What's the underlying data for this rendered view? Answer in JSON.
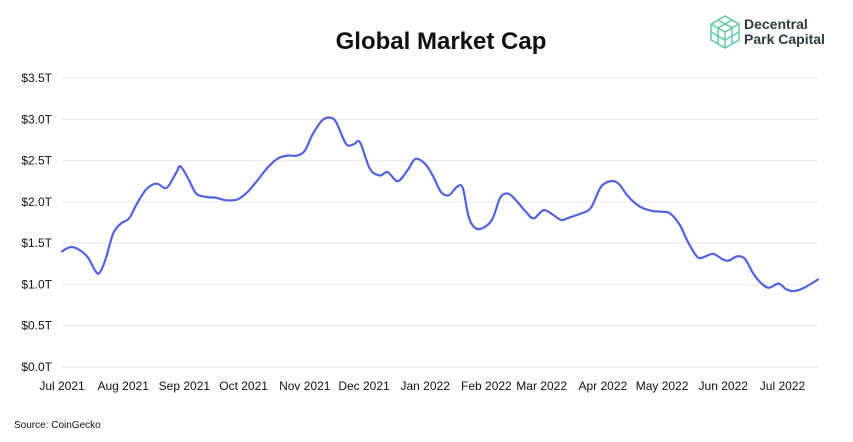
{
  "chart_data": {
    "type": "line",
    "title": "Global Market Cap",
    "xlabel": "",
    "ylabel": "",
    "ylim": [
      0,
      3.5
    ],
    "y_ticks": [
      {
        "value": 0.0,
        "label": "$0.0T"
      },
      {
        "value": 0.5,
        "label": "$0.5T"
      },
      {
        "value": 1.0,
        "label": "$1.0T"
      },
      {
        "value": 1.5,
        "label": "$1.5T"
      },
      {
        "value": 2.0,
        "label": "$2.0T"
      },
      {
        "value": 2.5,
        "label": "$2.5T"
      },
      {
        "value": 3.0,
        "label": "$3.0T"
      },
      {
        "value": 3.5,
        "label": "$3.5T"
      }
    ],
    "x_ticks": [
      {
        "date": "2021-07-01",
        "label": "Jul 2021"
      },
      {
        "date": "2021-08-01",
        "label": "Aug 2021"
      },
      {
        "date": "2021-09-01",
        "label": "Sep 2021"
      },
      {
        "date": "2021-10-01",
        "label": "Oct 2021"
      },
      {
        "date": "2021-11-01",
        "label": "Nov 2021"
      },
      {
        "date": "2021-12-01",
        "label": "Dec 2021"
      },
      {
        "date": "2022-01-01",
        "label": "Jan 2022"
      },
      {
        "date": "2022-02-01",
        "label": "Feb 2022"
      },
      {
        "date": "2022-03-01",
        "label": "Mar 2022"
      },
      {
        "date": "2022-04-01",
        "label": "Apr 2022"
      },
      {
        "date": "2022-05-01",
        "label": "May 2022"
      },
      {
        "date": "2022-06-01",
        "label": "Jun 2022"
      },
      {
        "date": "2022-07-01",
        "label": "Jul 2022"
      }
    ],
    "grid": true,
    "legend": "none",
    "series": [
      {
        "color": "#4f63de",
        "points": [
          [
            "2021-07-01",
            1.4
          ],
          [
            "2021-07-05",
            1.45
          ],
          [
            "2021-07-09",
            1.43
          ],
          [
            "2021-07-14",
            1.33
          ],
          [
            "2021-07-18",
            1.16
          ],
          [
            "2021-07-20",
            1.14
          ],
          [
            "2021-07-23",
            1.3
          ],
          [
            "2021-07-27",
            1.62
          ],
          [
            "2021-07-31",
            1.74
          ],
          [
            "2021-08-04",
            1.8
          ],
          [
            "2021-08-08",
            1.98
          ],
          [
            "2021-08-13",
            2.16
          ],
          [
            "2021-08-18",
            2.22
          ],
          [
            "2021-08-23",
            2.17
          ],
          [
            "2021-08-28",
            2.36
          ],
          [
            "2021-08-30",
            2.43
          ],
          [
            "2021-09-03",
            2.28
          ],
          [
            "2021-09-07",
            2.1
          ],
          [
            "2021-09-12",
            2.06
          ],
          [
            "2021-09-17",
            2.05
          ],
          [
            "2021-09-22",
            2.02
          ],
          [
            "2021-09-28",
            2.03
          ],
          [
            "2021-10-03",
            2.12
          ],
          [
            "2021-10-08",
            2.26
          ],
          [
            "2021-10-13",
            2.41
          ],
          [
            "2021-10-18",
            2.52
          ],
          [
            "2021-10-23",
            2.56
          ],
          [
            "2021-10-28",
            2.56
          ],
          [
            "2021-11-01",
            2.62
          ],
          [
            "2021-11-05",
            2.82
          ],
          [
            "2021-11-10",
            2.99
          ],
          [
            "2021-11-14",
            3.02
          ],
          [
            "2021-11-17",
            2.96
          ],
          [
            "2021-11-22",
            2.7
          ],
          [
            "2021-11-26",
            2.7
          ],
          [
            "2021-11-29",
            2.72
          ],
          [
            "2021-12-04",
            2.4
          ],
          [
            "2021-12-09",
            2.32
          ],
          [
            "2021-12-13",
            2.36
          ],
          [
            "2021-12-18",
            2.25
          ],
          [
            "2021-12-23",
            2.38
          ],
          [
            "2021-12-27",
            2.52
          ],
          [
            "2022-01-01",
            2.46
          ],
          [
            "2022-01-05",
            2.31
          ],
          [
            "2022-01-09",
            2.12
          ],
          [
            "2022-01-13",
            2.08
          ],
          [
            "2022-01-17",
            2.18
          ],
          [
            "2022-01-20",
            2.17
          ],
          [
            "2022-01-23",
            1.82
          ],
          [
            "2022-01-26",
            1.69
          ],
          [
            "2022-01-30",
            1.68
          ],
          [
            "2022-02-04",
            1.79
          ],
          [
            "2022-02-08",
            2.05
          ],
          [
            "2022-02-12",
            2.1
          ],
          [
            "2022-02-16",
            2.02
          ],
          [
            "2022-02-21",
            1.88
          ],
          [
            "2022-02-25",
            1.8
          ],
          [
            "2022-03-02",
            1.9
          ],
          [
            "2022-03-07",
            1.84
          ],
          [
            "2022-03-11",
            1.78
          ],
          [
            "2022-03-15",
            1.81
          ],
          [
            "2022-03-21",
            1.86
          ],
          [
            "2022-03-26",
            1.93
          ],
          [
            "2022-03-31",
            2.18
          ],
          [
            "2022-04-05",
            2.25
          ],
          [
            "2022-04-09",
            2.22
          ],
          [
            "2022-04-14",
            2.06
          ],
          [
            "2022-04-20",
            1.94
          ],
          [
            "2022-04-26",
            1.89
          ],
          [
            "2022-05-01",
            1.88
          ],
          [
            "2022-05-05",
            1.86
          ],
          [
            "2022-05-10",
            1.72
          ],
          [
            "2022-05-14",
            1.52
          ],
          [
            "2022-05-19",
            1.33
          ],
          [
            "2022-05-23",
            1.34
          ],
          [
            "2022-05-27",
            1.37
          ],
          [
            "2022-06-01",
            1.3
          ],
          [
            "2022-06-04",
            1.29
          ],
          [
            "2022-06-08",
            1.34
          ],
          [
            "2022-06-12",
            1.31
          ],
          [
            "2022-06-16",
            1.14
          ],
          [
            "2022-06-20",
            1.02
          ],
          [
            "2022-06-24",
            0.96
          ],
          [
            "2022-06-29",
            1.01
          ],
          [
            "2022-07-03",
            0.94
          ],
          [
            "2022-07-07",
            0.92
          ],
          [
            "2022-07-12",
            0.96
          ],
          [
            "2022-07-19",
            1.06
          ]
        ]
      }
    ]
  },
  "brand": {
    "line1": "Decentral",
    "line2": "Park Capital",
    "logo_icon": "isometric-cube-grid-icon",
    "logo_color": "#5cc6a6"
  },
  "source": "Source: CoinGecko"
}
